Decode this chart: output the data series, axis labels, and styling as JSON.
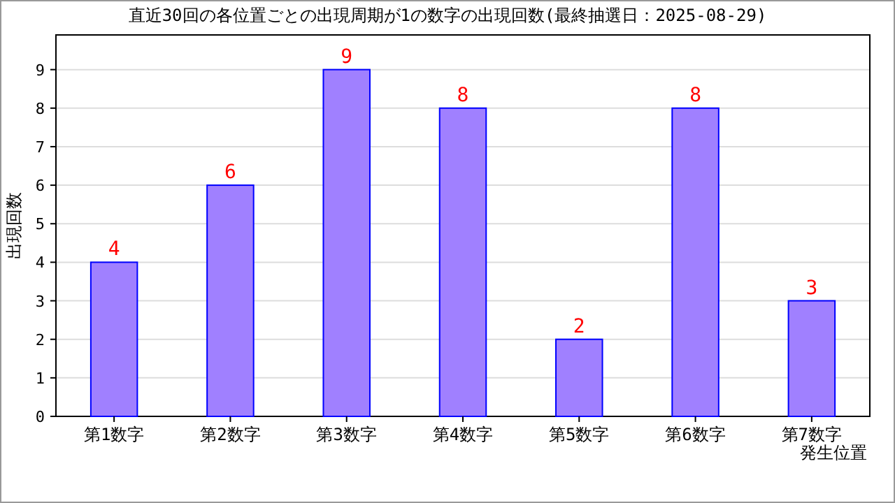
{
  "chart_data": {
    "type": "bar",
    "title": "直近30回の各位置ごとの出現周期が1の数字の出現回数(最終抽選日：2025-08-29)",
    "xlabel": "発生位置",
    "ylabel": "出現回数",
    "categories": [
      "第1数字",
      "第2数字",
      "第3数字",
      "第4数字",
      "第5数字",
      "第6数字",
      "第7数字"
    ],
    "values": [
      4,
      6,
      9,
      8,
      2,
      8,
      3
    ],
    "color": "#a080ff",
    "ylim": [
      0,
      9.9
    ],
    "yticks": [
      0,
      1,
      2,
      3,
      4,
      5,
      6,
      7,
      8,
      9
    ],
    "grid": "y",
    "data_labels": true
  }
}
